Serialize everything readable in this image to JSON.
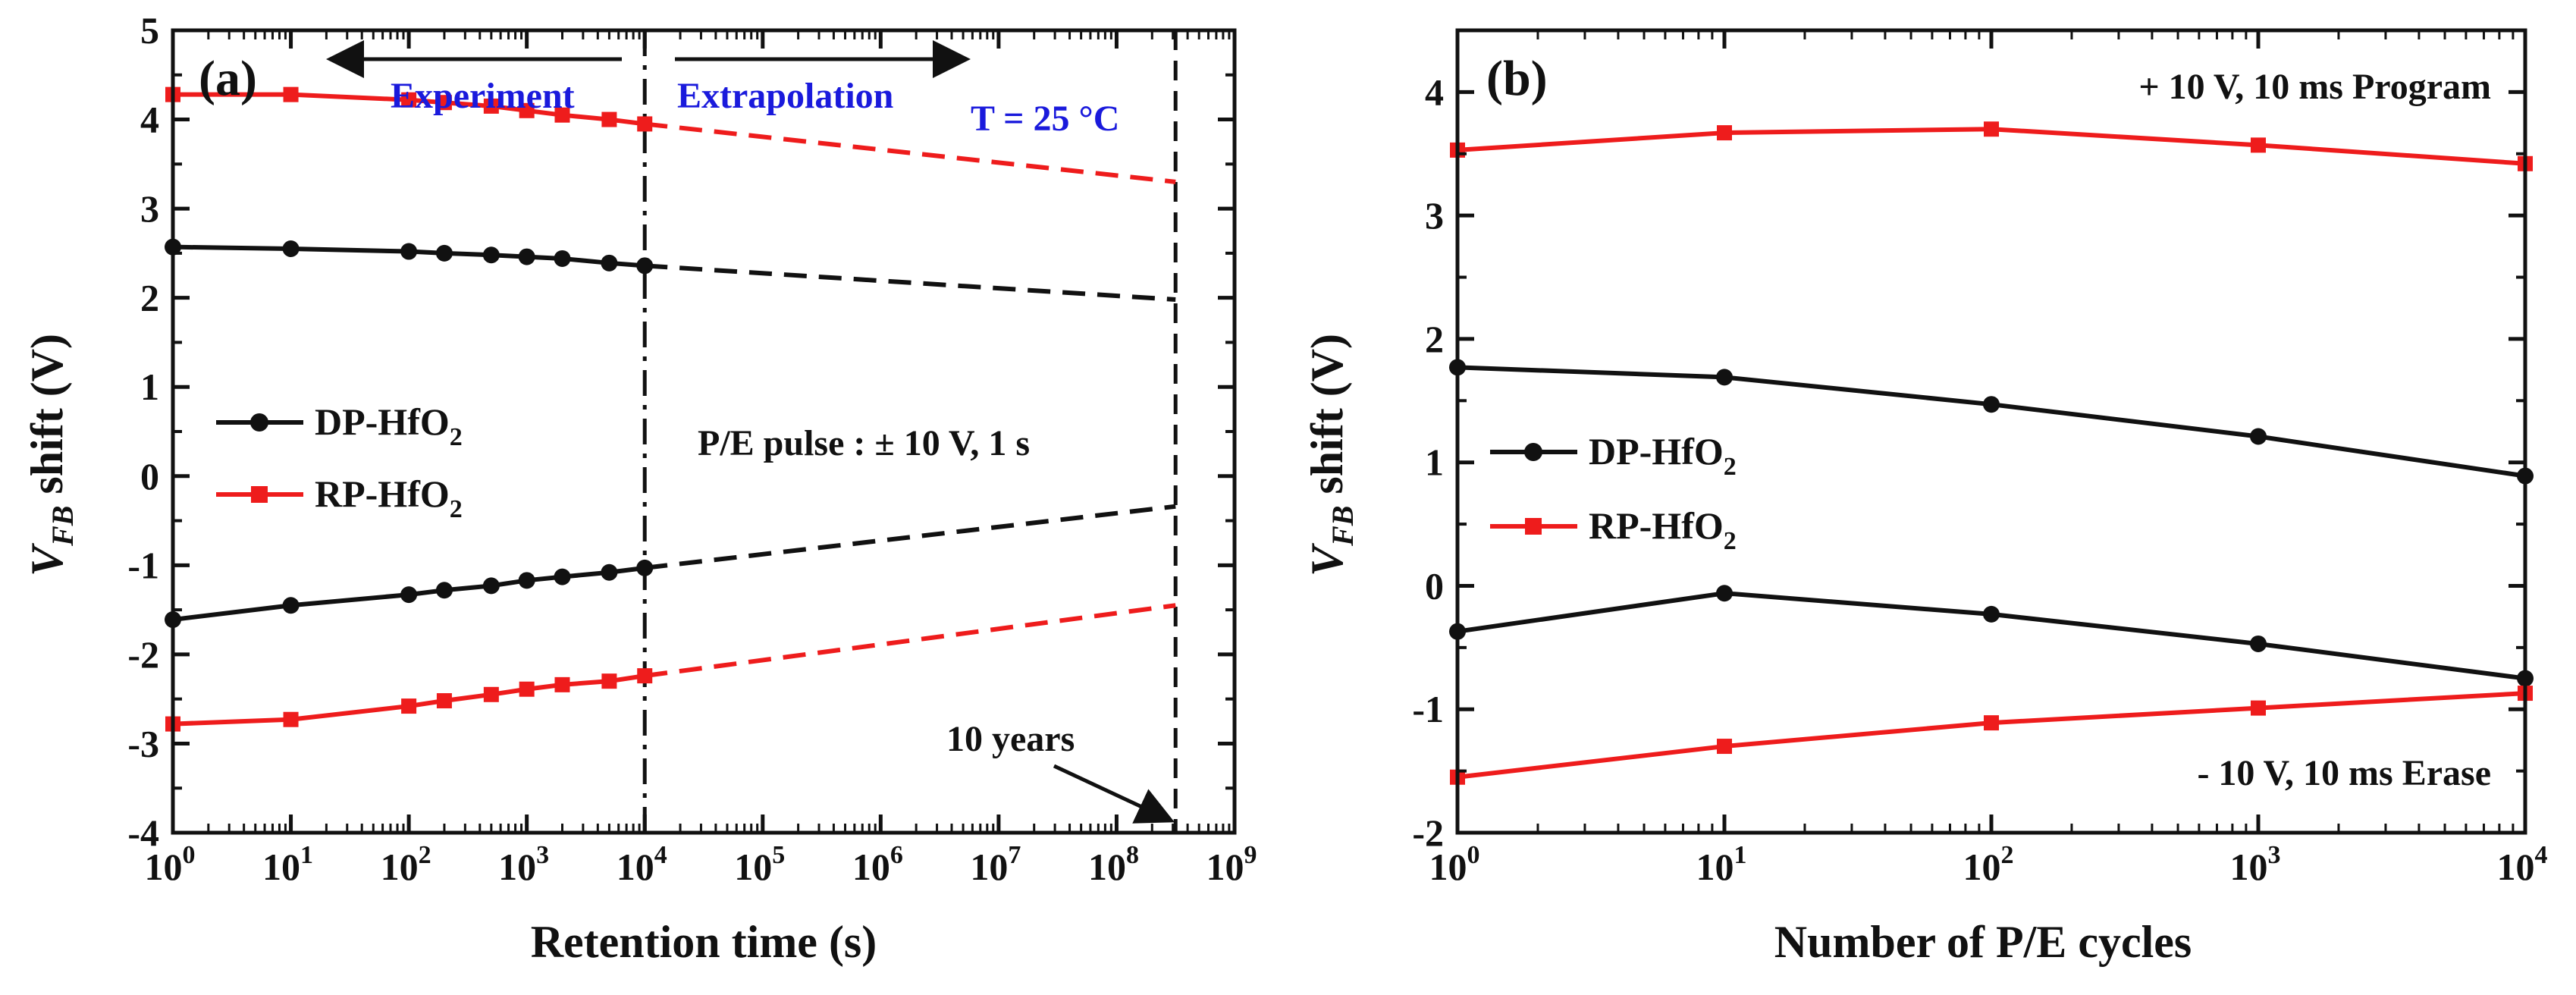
{
  "colors": {
    "dp": "#111111",
    "rp": "#ee1c1c",
    "annotation_blue": "#1a1adc",
    "axis": "#111111"
  },
  "chart_data": [
    {
      "type": "line",
      "panel": "(a)",
      "xscale": "log",
      "xlim_exp": [
        0,
        9
      ],
      "x_tick_labels": [
        "10",
        "10",
        "10",
        "10",
        "10",
        "10",
        "10",
        "10",
        "10",
        "10"
      ],
      "x_tick_exponents": [
        "0",
        "1",
        "2",
        "3",
        "4",
        "5",
        "6",
        "7",
        "8",
        "9"
      ],
      "xlabel": "Retention time (s)",
      "ylabel_main": "V",
      "ylabel_sub": "FB",
      "ylabel_rest": " shift (V)",
      "ylim": [
        -4,
        5
      ],
      "y_ticks": [
        "-4",
        "-3",
        "-2",
        "-1",
        "0",
        "1",
        "2",
        "3",
        "4",
        "5"
      ],
      "vlines_log10": [
        4,
        8.5
      ],
      "series": [
        {
          "name": "DP-HfO2 program",
          "color_key": "dp",
          "marker": "circle",
          "x_log10": [
            0,
            1,
            2,
            2.301,
            2.699,
            3,
            3.301,
            3.699,
            4
          ],
          "y": [
            2.57,
            2.55,
            2.52,
            2.5,
            2.48,
            2.46,
            2.44,
            2.39,
            2.36
          ],
          "extrap_to": [
            8.5,
            1.98
          ]
        },
        {
          "name": "DP-HfO2 erase",
          "color_key": "dp",
          "marker": "circle",
          "x_log10": [
            0,
            1,
            2,
            2.301,
            2.699,
            3,
            3.301,
            3.699,
            4
          ],
          "y": [
            -1.61,
            -1.45,
            -1.33,
            -1.28,
            -1.23,
            -1.17,
            -1.13,
            -1.08,
            -1.03
          ],
          "extrap_to": [
            8.5,
            -0.34
          ]
        },
        {
          "name": "RP-HfO2 program",
          "color_key": "rp",
          "marker": "square",
          "x_log10": [
            0,
            1,
            2,
            2.301,
            2.699,
            3,
            3.301,
            3.699,
            4
          ],
          "y": [
            4.28,
            4.28,
            4.22,
            4.19,
            4.15,
            4.1,
            4.05,
            4.0,
            3.95
          ],
          "extrap_to": [
            8.5,
            3.3
          ]
        },
        {
          "name": "RP-HfO2 erase",
          "color_key": "rp",
          "marker": "square",
          "x_log10": [
            0,
            1,
            2,
            2.301,
            2.699,
            3,
            3.301,
            3.699,
            4
          ],
          "y": [
            -2.78,
            -2.73,
            -2.58,
            -2.52,
            -2.45,
            -2.39,
            -2.34,
            -2.3,
            -2.24
          ],
          "extrap_to": [
            8.5,
            -1.45
          ]
        }
      ],
      "legend": {
        "placement": "center-left",
        "entries": [
          {
            "label": "DP-HfO",
            "sub": "2",
            "color_key": "dp",
            "marker": "circle"
          },
          {
            "label": "RP-HfO",
            "sub": "2",
            "color_key": "rp",
            "marker": "square"
          }
        ]
      },
      "annotations": {
        "experiment": "Experiment",
        "extrapolation": "Extrapolation",
        "temperature": "T = 25 °C",
        "pulse": "P/E pulse : ± 10 V, 1 s",
        "ten_years": "10 years"
      }
    },
    {
      "type": "line",
      "panel": "(b)",
      "xscale": "log",
      "xlim_exp": [
        0,
        4
      ],
      "x_tick_labels": [
        "10",
        "10",
        "10",
        "10",
        "10"
      ],
      "x_tick_exponents": [
        "0",
        "1",
        "2",
        "3",
        "4"
      ],
      "xlabel": "Number of P/E cycles",
      "ylabel_main": "V",
      "ylabel_sub": "FB",
      "ylabel_rest": " shift (V)",
      "ylim": [
        -2,
        4.5
      ],
      "y_ticks": [
        "-2",
        "-1",
        "0",
        "1",
        "2",
        "3",
        "4"
      ],
      "series": [
        {
          "name": "DP-HfO2 program",
          "color_key": "dp",
          "marker": "circle",
          "x_log10": [
            0,
            1,
            2,
            3,
            4
          ],
          "y": [
            1.77,
            1.69,
            1.47,
            1.21,
            0.89
          ]
        },
        {
          "name": "DP-HfO2 erase",
          "color_key": "dp",
          "marker": "circle",
          "x_log10": [
            0,
            1,
            2,
            3,
            4
          ],
          "y": [
            -0.37,
            -0.06,
            -0.23,
            -0.47,
            -0.75
          ]
        },
        {
          "name": "RP-HfO2 program",
          "color_key": "rp",
          "marker": "square",
          "x_log10": [
            0,
            1,
            2,
            3,
            4
          ],
          "y": [
            3.53,
            3.67,
            3.7,
            3.57,
            3.42
          ]
        },
        {
          "name": "RP-HfO2 erase",
          "color_key": "rp",
          "marker": "square",
          "x_log10": [
            0,
            1,
            2,
            3,
            4
          ],
          "y": [
            -1.55,
            -1.3,
            -1.11,
            -0.99,
            -0.87
          ]
        }
      ],
      "legend": {
        "placement": "center-left",
        "entries": [
          {
            "label": "DP-HfO",
            "sub": "2",
            "color_key": "dp",
            "marker": "circle"
          },
          {
            "label": "RP-HfO",
            "sub": "2",
            "color_key": "rp",
            "marker": "square"
          }
        ]
      },
      "annotations": {
        "program": "+ 10 V, 10 ms Program",
        "erase": "- 10 V, 10 ms Erase"
      }
    }
  ]
}
